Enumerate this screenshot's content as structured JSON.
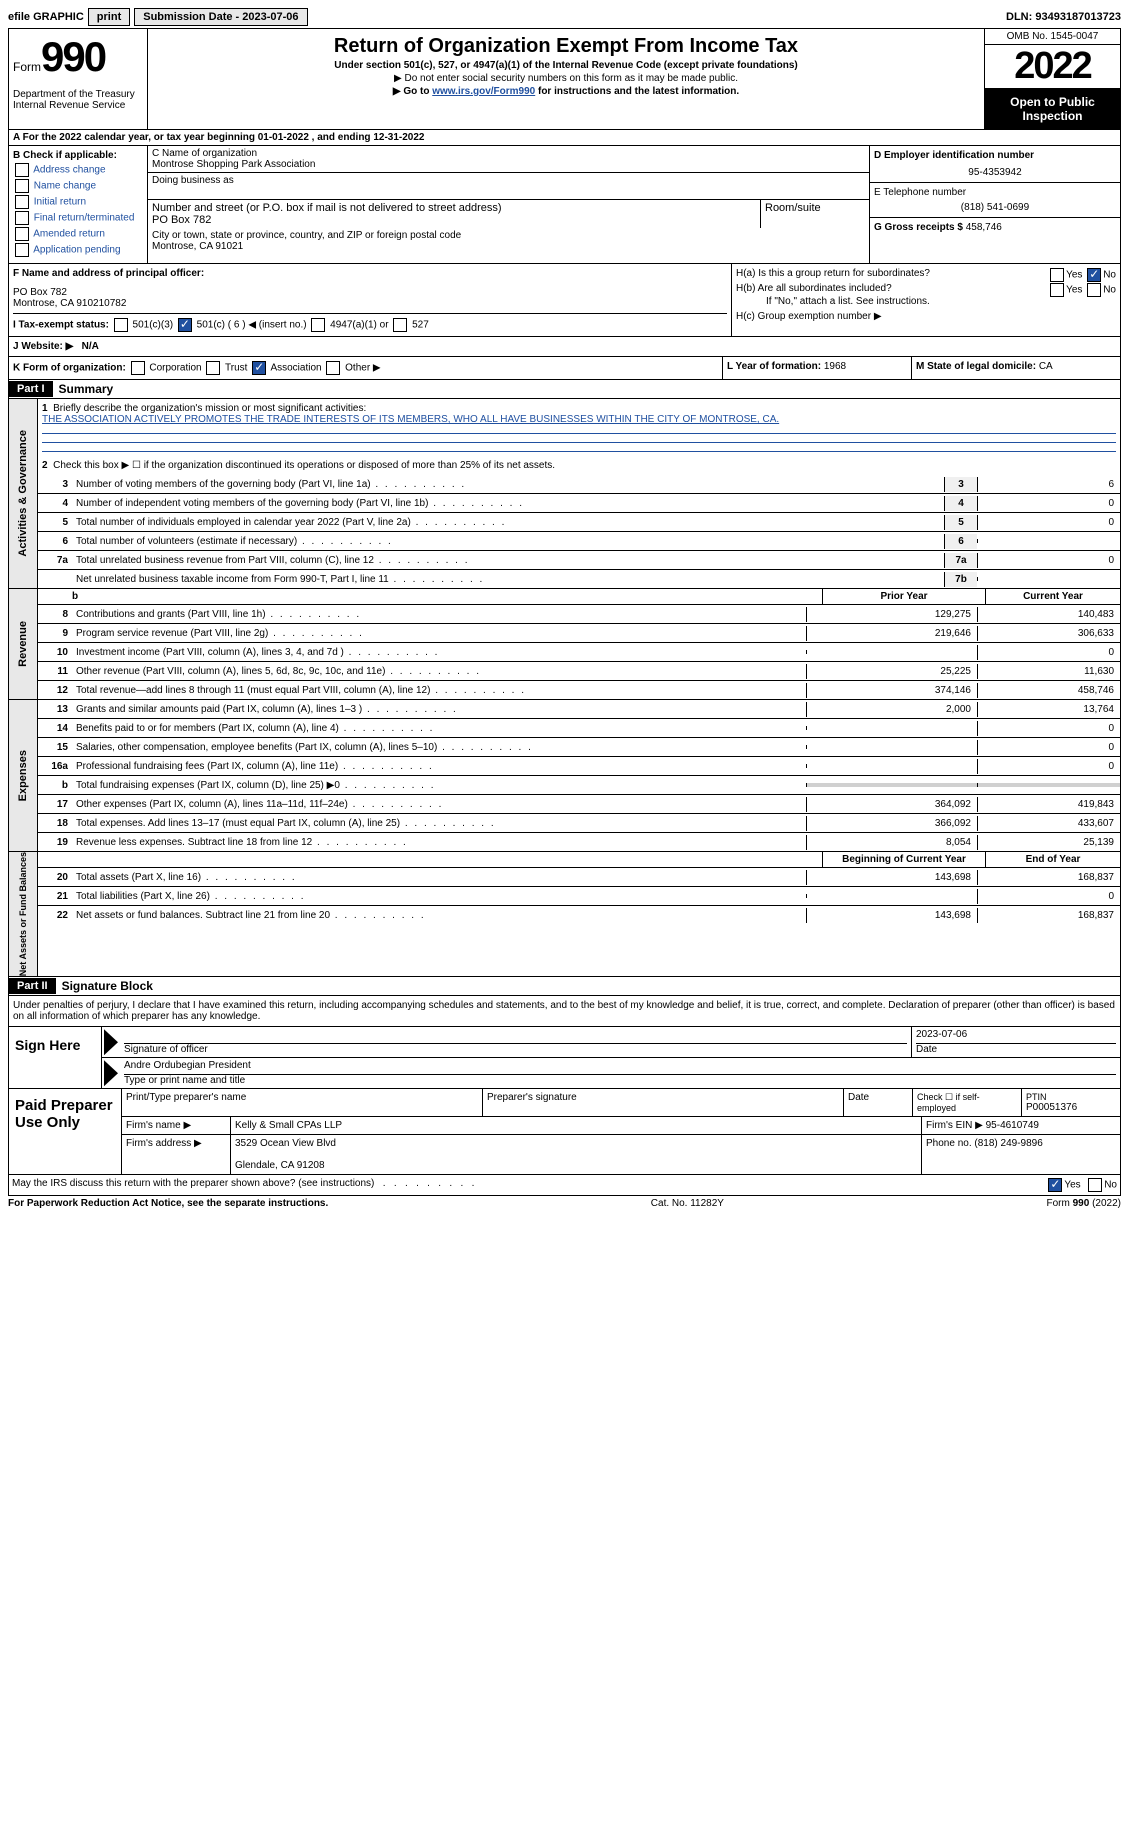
{
  "topbar": {
    "efile": "efile GRAPHIC",
    "print": "print",
    "sub_label": "Submission Date - 2023-07-06",
    "dln": "DLN: 93493187013723"
  },
  "header": {
    "form_word": "Form",
    "form_num": "990",
    "dept": "Department of the Treasury\nInternal Revenue Service",
    "title": "Return of Organization Exempt From Income Tax",
    "sub1": "Under section 501(c), 527, or 4947(a)(1) of the Internal Revenue Code (except private foundations)",
    "sub2": "▶ Do not enter social security numbers on this form as it may be made public.",
    "sub3_pre": "▶ Go to ",
    "sub3_link": "www.irs.gov/Form990",
    "sub3_post": " for instructions and the latest information.",
    "omb": "OMB No. 1545-0047",
    "year": "2022",
    "open": "Open to Public Inspection"
  },
  "row_a": "A For the 2022 calendar year, or tax year beginning 01-01-2022   , and ending 12-31-2022",
  "box_b": {
    "label": "B Check if applicable:",
    "opts": [
      "Address change",
      "Name change",
      "Initial return",
      "Final return/terminated",
      "Amended return",
      "Application pending"
    ]
  },
  "box_c": {
    "label": "C Name of organization",
    "name": "Montrose Shopping Park Association",
    "dba_label": "Doing business as",
    "addr_label": "Number and street (or P.O. box if mail is not delivered to street address)",
    "room_label": "Room/suite",
    "addr": "PO Box 782",
    "city_label": "City or town, state or province, country, and ZIP or foreign postal code",
    "city": "Montrose, CA  91021"
  },
  "box_d": {
    "label": "D Employer identification number",
    "val": "95-4353942"
  },
  "box_e": {
    "label": "E Telephone number",
    "val": "(818) 541-0699"
  },
  "box_g": {
    "label": "G Gross receipts $",
    "val": "458,746"
  },
  "box_f": {
    "label": "F  Name and address of principal officer:",
    "addr": "PO Box 782\nMontrose, CA  910210782"
  },
  "box_h": {
    "a": "H(a)  Is this a group return for subordinates?",
    "b": "H(b)  Are all subordinates included?",
    "note": "If \"No,\" attach a list. See instructions.",
    "c": "H(c)  Group exemption number ▶"
  },
  "box_i": {
    "label": "I  Tax-exempt status:",
    "o1": "501(c)(3)",
    "o2": "501(c) ( 6 ) ◀ (insert no.)",
    "o3": "4947(a)(1) or",
    "o4": "527"
  },
  "box_j": {
    "label": "J  Website: ▶",
    "val": "N/A"
  },
  "box_k": {
    "label": "K Form of organization:",
    "o": [
      "Corporation",
      "Trust",
      "Association",
      "Other ▶"
    ]
  },
  "box_l": {
    "label": "L Year of formation:",
    "val": "1968"
  },
  "box_m": {
    "label": "M State of legal domicile:",
    "val": "CA"
  },
  "part1": {
    "tag": "Part I",
    "title": "Summary"
  },
  "summary": {
    "line1_label": "Briefly describe the organization's mission or most significant activities:",
    "mission": "THE ASSOCIATION ACTIVELY PROMOTES THE TRADE INTERESTS OF ITS MEMBERS, WHO ALL HAVE BUSINESSES WITHIN THE CITY OF MONTROSE, CA.",
    "line2": "Check this box ▶ ☐ if the organization discontinued its operations or disposed of more than 25% of its net assets.",
    "hdr_prior": "Prior Year",
    "hdr_current": "Current Year",
    "hdr_begin": "Beginning of Current Year",
    "hdr_end": "End of Year",
    "rows_gov": [
      {
        "n": "3",
        "d": "Number of voting members of the governing body (Part VI, line 1a)",
        "box": "3",
        "v": "6"
      },
      {
        "n": "4",
        "d": "Number of independent voting members of the governing body (Part VI, line 1b)",
        "box": "4",
        "v": "0"
      },
      {
        "n": "5",
        "d": "Total number of individuals employed in calendar year 2022 (Part V, line 2a)",
        "box": "5",
        "v": "0"
      },
      {
        "n": "6",
        "d": "Total number of volunteers (estimate if necessary)",
        "box": "6",
        "v": ""
      },
      {
        "n": "7a",
        "d": "Total unrelated business revenue from Part VIII, column (C), line 12",
        "box": "7a",
        "v": "0"
      },
      {
        "n": "",
        "d": "Net unrelated business taxable income from Form 990-T, Part I, line 11",
        "box": "7b",
        "v": ""
      }
    ],
    "rows_rev": [
      {
        "n": "8",
        "d": "Contributions and grants (Part VIII, line 1h)",
        "p": "129,275",
        "c": "140,483"
      },
      {
        "n": "9",
        "d": "Program service revenue (Part VIII, line 2g)",
        "p": "219,646",
        "c": "306,633"
      },
      {
        "n": "10",
        "d": "Investment income (Part VIII, column (A), lines 3, 4, and 7d )",
        "p": "",
        "c": "0"
      },
      {
        "n": "11",
        "d": "Other revenue (Part VIII, column (A), lines 5, 6d, 8c, 9c, 10c, and 11e)",
        "p": "25,225",
        "c": "11,630"
      },
      {
        "n": "12",
        "d": "Total revenue—add lines 8 through 11 (must equal Part VIII, column (A), line 12)",
        "p": "374,146",
        "c": "458,746"
      }
    ],
    "rows_exp": [
      {
        "n": "13",
        "d": "Grants and similar amounts paid (Part IX, column (A), lines 1–3 )",
        "p": "2,000",
        "c": "13,764"
      },
      {
        "n": "14",
        "d": "Benefits paid to or for members (Part IX, column (A), line 4)",
        "p": "",
        "c": "0"
      },
      {
        "n": "15",
        "d": "Salaries, other compensation, employee benefits (Part IX, column (A), lines 5–10)",
        "p": "",
        "c": "0"
      },
      {
        "n": "16a",
        "d": "Professional fundraising fees (Part IX, column (A), line 11e)",
        "p": "",
        "c": "0"
      },
      {
        "n": "b",
        "d": "Total fundraising expenses (Part IX, column (D), line 25) ▶0",
        "p": "shaded",
        "c": "shaded"
      },
      {
        "n": "17",
        "d": "Other expenses (Part IX, column (A), lines 11a–11d, 11f–24e)",
        "p": "364,092",
        "c": "419,843"
      },
      {
        "n": "18",
        "d": "Total expenses. Add lines 13–17 (must equal Part IX, column (A), line 25)",
        "p": "366,092",
        "c": "433,607"
      },
      {
        "n": "19",
        "d": "Revenue less expenses. Subtract line 18 from line 12",
        "p": "8,054",
        "c": "25,139"
      }
    ],
    "rows_net": [
      {
        "n": "20",
        "d": "Total assets (Part X, line 16)",
        "p": "143,698",
        "c": "168,837"
      },
      {
        "n": "21",
        "d": "Total liabilities (Part X, line 26)",
        "p": "",
        "c": "0"
      },
      {
        "n": "22",
        "d": "Net assets or fund balances. Subtract line 21 from line 20",
        "p": "143,698",
        "c": "168,837"
      }
    ]
  },
  "part2": {
    "tag": "Part II",
    "title": "Signature Block"
  },
  "sig": {
    "penalty": "Under penalties of perjury, I declare that I have examined this return, including accompanying schedules and statements, and to the best of my knowledge and belief, it is true, correct, and complete. Declaration of preparer (other than officer) is based on all information of which preparer has any knowledge.",
    "sign_here": "Sign Here",
    "sig_officer": "Signature of officer",
    "date_label": "Date",
    "date": "2023-07-06",
    "name": "Andre Ordubegian  President",
    "type_name": "Type or print name and title"
  },
  "prep": {
    "title": "Paid Preparer Use Only",
    "h1": "Print/Type preparer's name",
    "h2": "Preparer's signature",
    "h3": "Date",
    "h4_a": "Check ☐ if self-employed",
    "h4_b": "PTIN",
    "ptin": "P00051376",
    "firm_label": "Firm's name    ▶",
    "firm": "Kelly & Small CPAs LLP",
    "ein_label": "Firm's EIN ▶",
    "ein": "95-4610749",
    "addr_label": "Firm's address ▶",
    "addr": "3529 Ocean View Blvd\n\nGlendale, CA  91208",
    "phone_label": "Phone no.",
    "phone": "(818) 249-9896"
  },
  "discuss": "May the IRS discuss this return with the preparer shown above? (see instructions)",
  "footer": {
    "l": "For Paperwork Reduction Act Notice, see the separate instructions.",
    "c": "Cat. No. 11282Y",
    "r": "Form 990 (2022)"
  },
  "yes": "Yes",
  "no": "No"
}
